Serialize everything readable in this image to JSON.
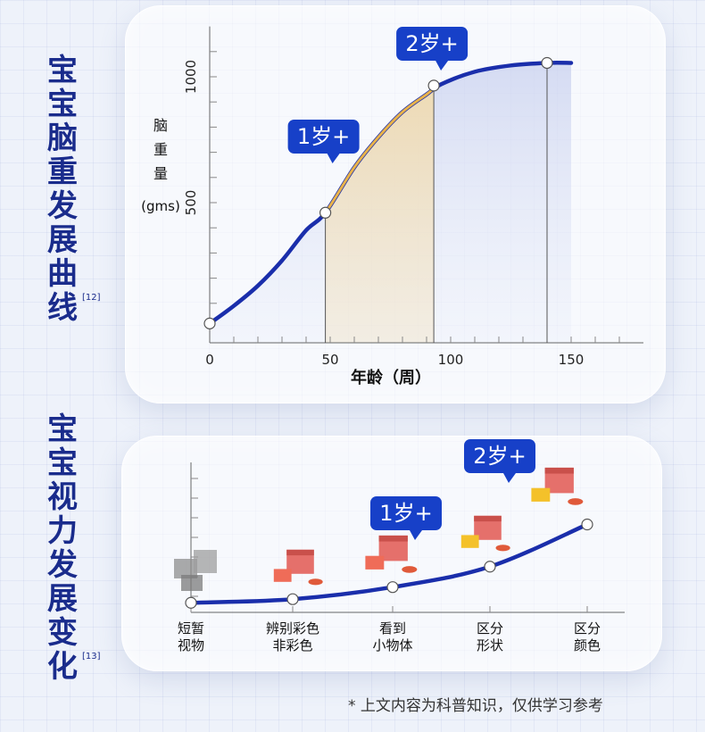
{
  "titles": {
    "brain": [
      "宝",
      "宝",
      "脑",
      "重",
      "发",
      "展",
      "曲",
      "线"
    ],
    "brain_ref": "[12]",
    "vision": [
      "宝",
      "宝",
      "视",
      "力",
      "发",
      "展",
      "变",
      "化"
    ],
    "vision_ref": "[13]"
  },
  "footnote": "* 上文内容为科普知识，仅供学习参考",
  "colors": {
    "curve": "#1a2eab",
    "highlight": "#e8b24a",
    "badge": "#1740c8",
    "title": "#1a2c8c"
  },
  "chart_data": [
    {
      "type": "line",
      "xlabel": "年龄（周）",
      "ylabel_chars": [
        "脑",
        "重",
        "量"
      ],
      "ylabel_unit": "(gms)",
      "x_ticks": [
        0,
        50,
        100,
        150
      ],
      "y_ticks": [
        500,
        1000
      ],
      "xlim": [
        0,
        180
      ],
      "ylim": [
        0,
        1200
      ],
      "series": [
        {
          "x": [
            0,
            10,
            20,
            30,
            40,
            48,
            60,
            70,
            80,
            90,
            96,
            110,
            125,
            140,
            150
          ],
          "y": [
            20,
            90,
            170,
            270,
            390,
            460,
            640,
            760,
            860,
            930,
            970,
            1020,
            1045,
            1055,
            1055
          ]
        }
      ],
      "markers": [
        {
          "x": 0,
          "y": 20
        },
        {
          "x": 48,
          "y": 460
        },
        {
          "x": 93,
          "y": 965
        },
        {
          "x": 140,
          "y": 1055
        }
      ],
      "highlight_range": [
        48,
        93
      ],
      "annotations": [
        {
          "text": "1岁+",
          "x": 48
        },
        {
          "text": "2岁+",
          "x": 93
        }
      ]
    },
    {
      "type": "line",
      "categories": [
        [
          "短暂",
          "视物"
        ],
        [
          "辨别彩色",
          "非彩色"
        ],
        [
          "看到",
          "小物体"
        ],
        [
          "区分",
          "形状"
        ],
        [
          "区分",
          "颜色"
        ]
      ],
      "values": [
        5,
        8,
        18,
        35,
        70
      ],
      "ylim": [
        0,
        100
      ],
      "annotations": [
        {
          "text": "1岁+",
          "category_index": 2
        },
        {
          "text": "2岁+",
          "category_index": 4
        }
      ]
    }
  ]
}
